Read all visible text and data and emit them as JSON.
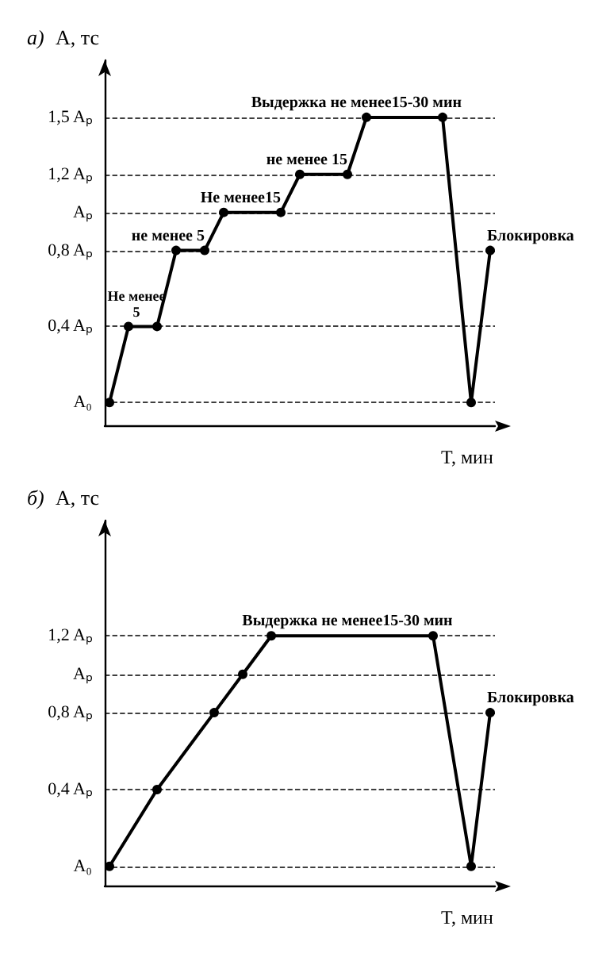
{
  "chart_data": [
    {
      "type": "line",
      "title": "а)",
      "ylabel": "A, тс",
      "xlabel": "T, мин",
      "color": "#000000",
      "tick_labels": "y",
      "grid": "y",
      "marker": "circle",
      "line_style": "solid",
      "categories": [
        null,
        null,
        null,
        null,
        null,
        null,
        null,
        null,
        null,
        null,
        null,
        null,
        null,
        null,
        null,
        null,
        null,
        null,
        null,
        null,
        null,
        null,
        null,
        null,
        null,
        null,
        null,
        null,
        null,
        null,
        null,
        null,
        null,
        null,
        null,
        null,
        null,
        null,
        null,
        null,
        null
      ],
      "values": [
        0,
        null,
        0.4,
        null,
        null,
        0.4,
        null,
        0.8,
        null,
        null,
        0.8,
        null,
        1,
        null,
        null,
        null,
        null,
        null,
        1,
        null,
        1.2,
        null,
        null,
        null,
        null,
        1.2,
        null,
        1.5,
        null,
        null,
        null,
        null,
        null,
        null,
        null,
        1.5,
        null,
        null,
        0,
        null,
        0.8
      ],
      "ylim": [
        -0.12,
        1.8
      ],
      "yticks": [
        {
          "value": 0,
          "label": "A₀"
        },
        {
          "value": 0.4,
          "label": "0,4 Aₚ"
        },
        {
          "value": 0.8,
          "label": "0,8 Aₚ"
        },
        {
          "value": 1,
          "label": "Aₚ"
        },
        {
          "value": 1.2,
          "label": "1,2 Aₚ"
        },
        {
          "value": 1.5,
          "label": "1,5 Aₚ"
        }
      ],
      "annotations": [
        {
          "text": "Не менее 5",
          "y": 0.4
        },
        {
          "text": "не менее 5",
          "y": 0.8
        },
        {
          "text": "Не менее15",
          "y": 1
        },
        {
          "text": "не менее 15",
          "y": 1.2
        },
        {
          "text": "Выдержка не менее15-30 мин",
          "y": 1.5
        },
        "Блокировка"
      ]
    },
    {
      "type": "line",
      "title": "б)",
      "ylabel": "A, тс",
      "xlabel": "T, мин",
      "color": "#000000",
      "tick_labels": "y",
      "grid": "y",
      "marker": "circle",
      "line_style": "solid",
      "categories": [
        null,
        null,
        null,
        null,
        null,
        null,
        null,
        null,
        null,
        null,
        null,
        null,
        null,
        null,
        null,
        null,
        null,
        null,
        null,
        null,
        null,
        null,
        null,
        null,
        null,
        null,
        null,
        null,
        null,
        null,
        null,
        null,
        null,
        null,
        null,
        null,
        null,
        null,
        null,
        null,
        null
      ],
      "values": [
        0,
        null,
        null,
        null,
        null,
        0.4,
        null,
        null,
        null,
        null,
        null,
        0.8,
        null,
        null,
        1,
        null,
        null,
        1.2,
        null,
        null,
        null,
        null,
        null,
        null,
        null,
        null,
        null,
        null,
        null,
        null,
        null,
        null,
        null,
        null,
        1.2,
        null,
        null,
        null,
        0,
        null,
        0.8
      ],
      "ylim": [
        -0.1,
        1.8
      ],
      "yticks": [
        {
          "value": 0,
          "label": "A₀"
        },
        {
          "value": 0.4,
          "label": "0,4 Aₚ"
        },
        {
          "value": 0.8,
          "label": "0,8 Aₚ"
        },
        {
          "value": 1,
          "label": "Aₚ"
        },
        {
          "value": 1.2,
          "label": "1,2 Aₚ"
        }
      ],
      "annotations": [
        {
          "text": "Выдержка не менее15-30 мин",
          "y": 1.2
        },
        "Блокировка"
      ]
    }
  ]
}
